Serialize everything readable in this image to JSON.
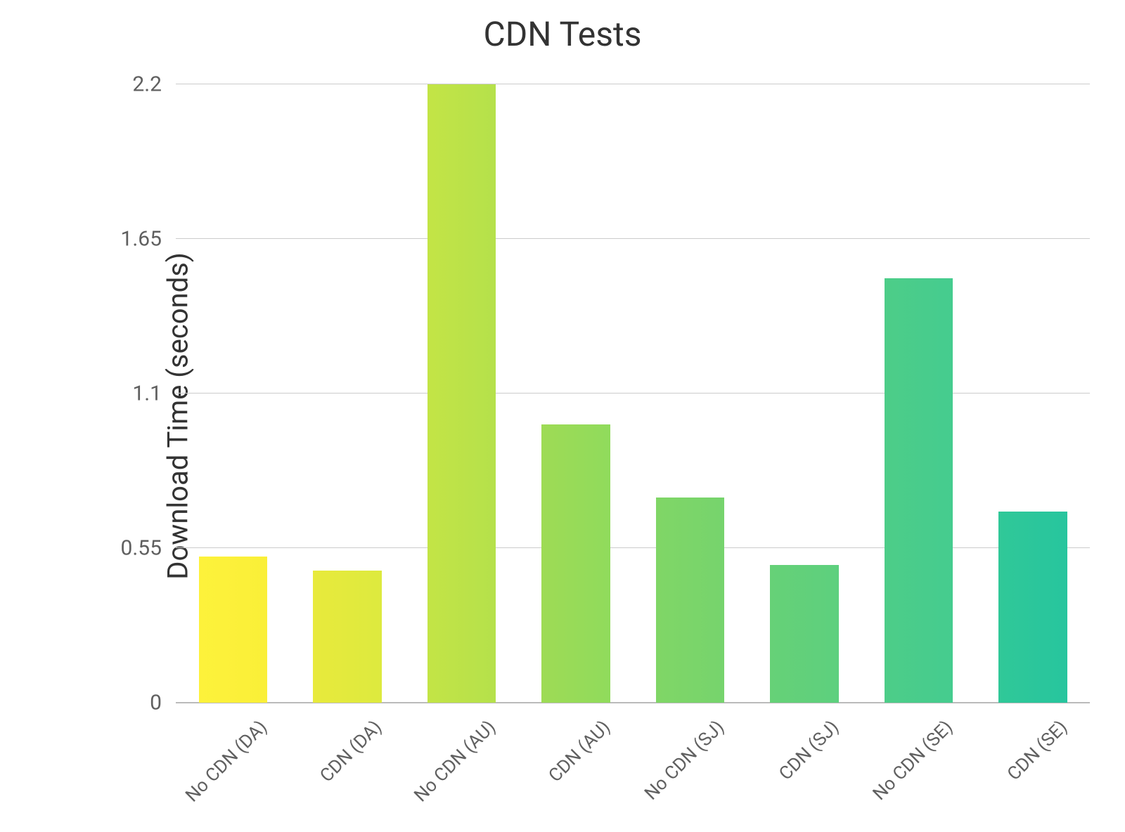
{
  "chart": {
    "type": "bar",
    "title": "CDN Tests",
    "title_fontsize": 48,
    "title_color": "#333333",
    "ylabel": "Download Time (seconds)",
    "ylabel_fontsize": 40,
    "ylabel_color": "#333333",
    "background_color": "#ffffff",
    "grid_color": "#cccccc",
    "tick_font_color": "#606060",
    "tick_fontsize": 30,
    "xtick_fontsize": 26,
    "xtick_rotation_deg": -45,
    "ylim": [
      0,
      2.2
    ],
    "yticks": [
      0,
      0.55,
      1.1,
      1.65,
      2.2
    ],
    "bar_width_ratio": 0.6,
    "categories": [
      "No CDN (DA)",
      "CDN (DA)",
      "No CDN (AU)",
      "CDN (AU)",
      "No CDN (SJ)",
      "CDN (SJ)",
      "No CDN (SE)",
      "CDN (SE)"
    ],
    "values": [
      0.52,
      0.47,
      2.2,
      0.99,
      0.73,
      0.49,
      1.51,
      0.68
    ],
    "bar_gradients": [
      [
        "#fdf23b",
        "#faef38"
      ],
      [
        "#e8ea3c",
        "#ddea3e"
      ],
      [
        "#c3e446",
        "#b5e14b"
      ],
      [
        "#9edb55",
        "#90db5c"
      ],
      [
        "#80d666",
        "#76d46d"
      ],
      [
        "#66d177",
        "#5dd07e"
      ],
      [
        "#4dcd88",
        "#45cc8f"
      ],
      [
        "#30c898",
        "#27c59e"
      ]
    ]
  }
}
